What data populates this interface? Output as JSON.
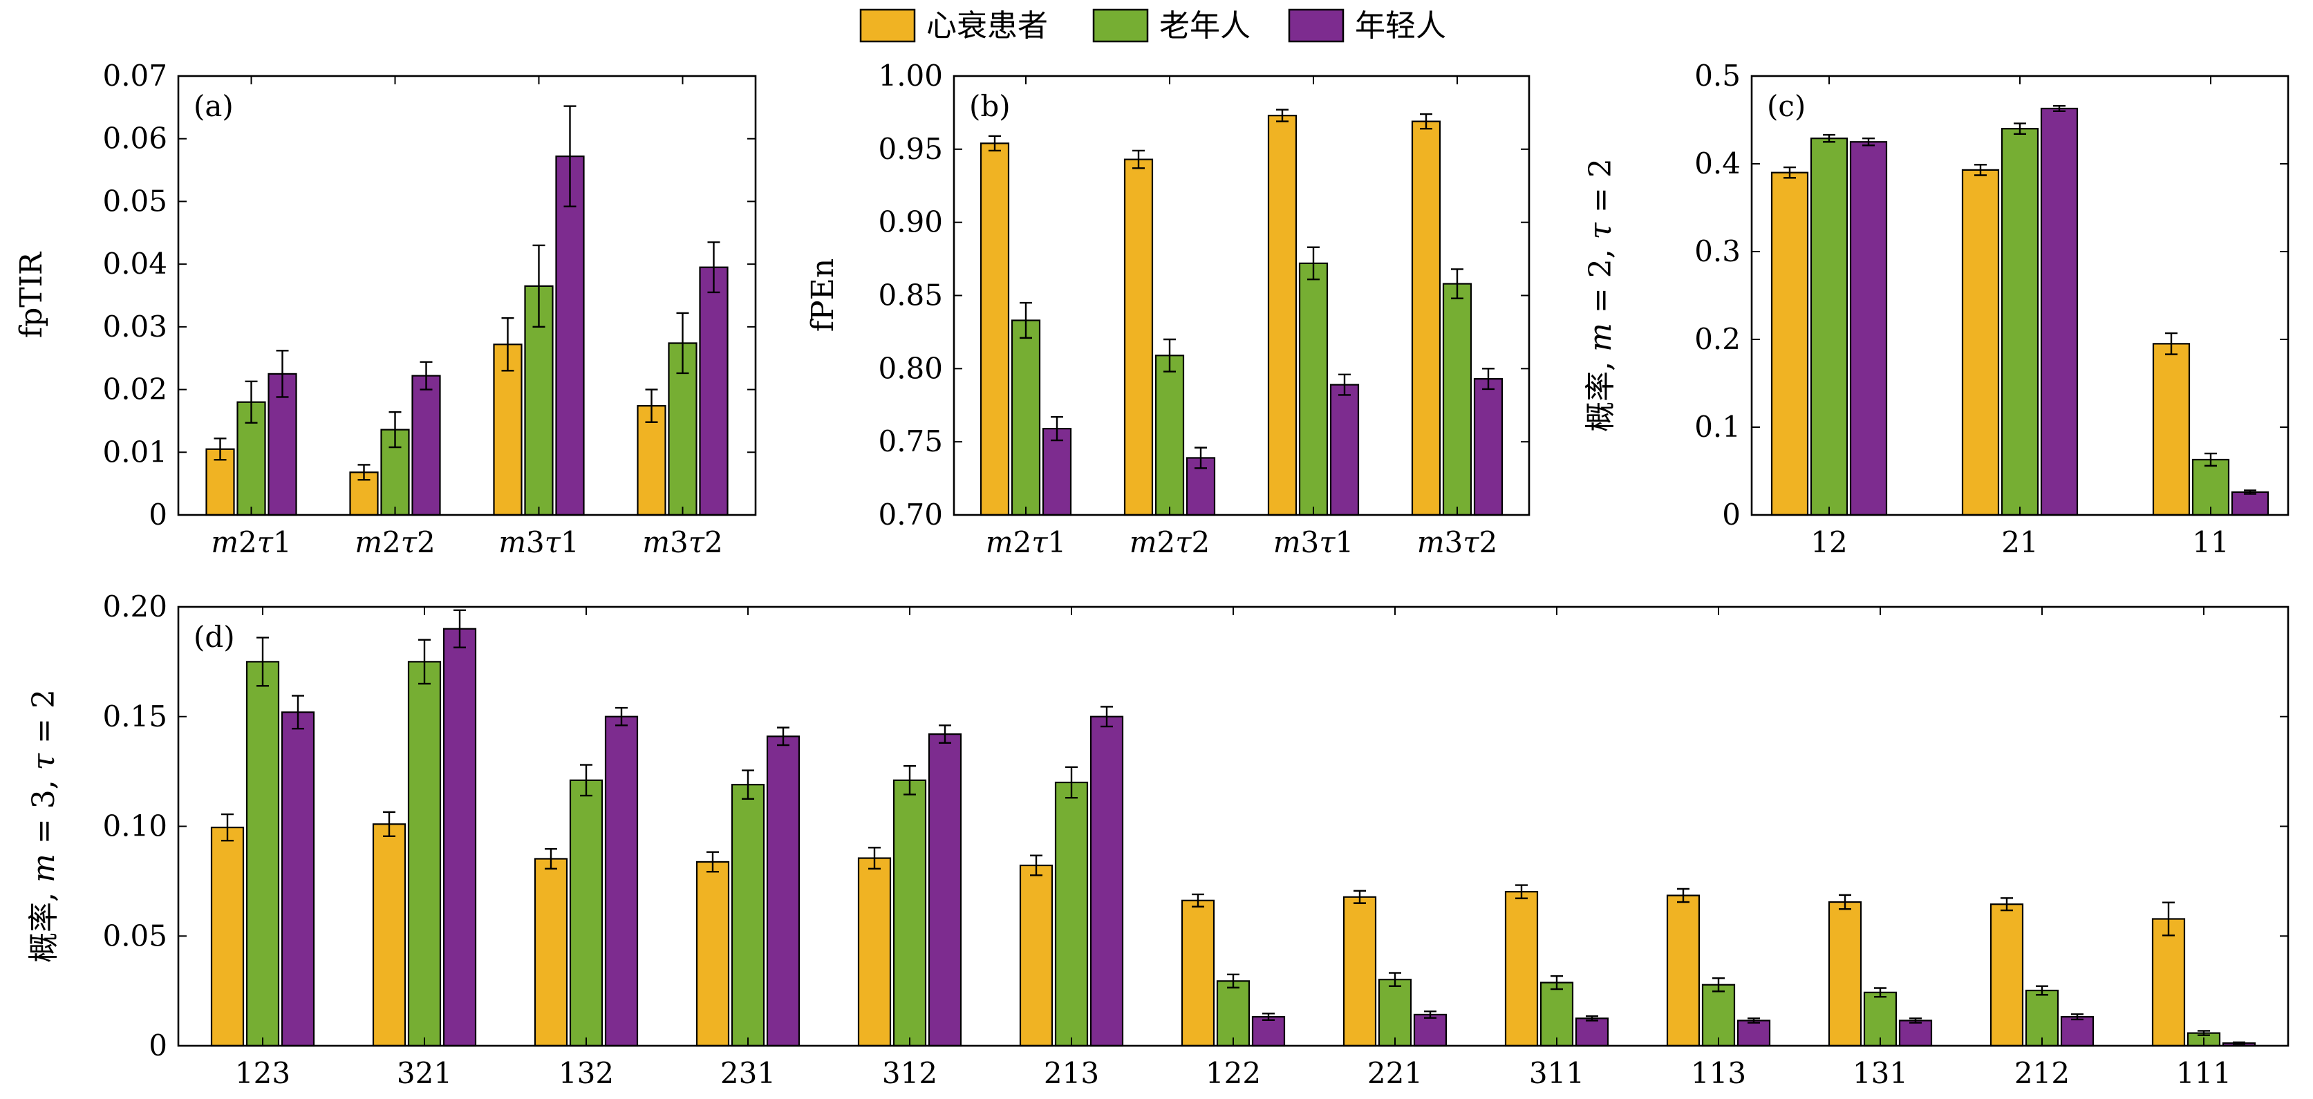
{
  "colors": {
    "心衰患者": "#F0B323",
    "老年人": "#76AE33",
    "年轻人": "#7D2C8F"
  },
  "legend": [
    "心衰患者",
    "老年人",
    "年轻人"
  ],
  "chart_data": [
    {
      "id": "a",
      "panel_label": "(a)",
      "type": "bar",
      "ylabel": "fpTIR",
      "xlabel": "",
      "categories": [
        "m2τ1",
        "m2τ2",
        "m3τ1",
        "m3τ2"
      ],
      "ylim": [
        0,
        0.07
      ],
      "yticks": [
        0,
        0.01,
        0.02,
        0.03,
        0.04,
        0.05,
        0.06,
        0.07
      ],
      "ytick_labels": [
        "0",
        "0.01",
        "0.02",
        "0.03",
        "0.04",
        "0.05",
        "0.06",
        "0.07"
      ],
      "series": [
        {
          "name": "心衰患者",
          "values": [
            0.0105,
            0.0068,
            0.0272,
            0.0174
          ],
          "errors": [
            0.0017,
            0.0012,
            0.0042,
            0.0026
          ]
        },
        {
          "name": "老年人",
          "values": [
            0.018,
            0.0136,
            0.0365,
            0.0274
          ],
          "errors": [
            0.0033,
            0.0028,
            0.0065,
            0.0048
          ]
        },
        {
          "name": "年轻人",
          "values": [
            0.0225,
            0.0222,
            0.0572,
            0.0395
          ],
          "errors": [
            0.0037,
            0.0022,
            0.008,
            0.004
          ]
        }
      ]
    },
    {
      "id": "b",
      "panel_label": "(b)",
      "type": "bar",
      "ylabel": "fPEn",
      "xlabel": "",
      "categories": [
        "m2τ1",
        "m2τ2",
        "m3τ1",
        "m3τ2"
      ],
      "ylim": [
        0.7,
        1.0
      ],
      "yticks": [
        0.7,
        0.75,
        0.8,
        0.85,
        0.9,
        0.95,
        1.0
      ],
      "ytick_labels": [
        "0.70",
        "0.75",
        "0.80",
        "0.85",
        "0.90",
        "0.95",
        "1.00"
      ],
      "series": [
        {
          "name": "心衰患者",
          "values": [
            0.954,
            0.943,
            0.973,
            0.969
          ],
          "errors": [
            0.005,
            0.006,
            0.004,
            0.005
          ]
        },
        {
          "name": "老年人",
          "values": [
            0.833,
            0.809,
            0.872,
            0.858
          ],
          "errors": [
            0.012,
            0.011,
            0.011,
            0.01
          ]
        },
        {
          "name": "年轻人",
          "values": [
            0.759,
            0.739,
            0.789,
            0.793
          ],
          "errors": [
            0.008,
            0.007,
            0.007,
            0.007
          ]
        }
      ]
    },
    {
      "id": "c",
      "panel_label": "(c)",
      "type": "bar",
      "ylabel": "概率, m = 2, τ = 2",
      "xlabel": "",
      "categories": [
        "12",
        "21",
        "11"
      ],
      "ylim": [
        0,
        0.5
      ],
      "yticks": [
        0,
        0.1,
        0.2,
        0.3,
        0.4,
        0.5
      ],
      "ytick_labels": [
        "0",
        "0.1",
        "0.2",
        "0.3",
        "0.4",
        "0.5"
      ],
      "series": [
        {
          "name": "心衰患者",
          "values": [
            0.39,
            0.393,
            0.195
          ],
          "errors": [
            0.006,
            0.006,
            0.012
          ]
        },
        {
          "name": "老年人",
          "values": [
            0.429,
            0.44,
            0.063
          ],
          "errors": [
            0.004,
            0.006,
            0.007
          ]
        },
        {
          "name": "年轻人",
          "values": [
            0.425,
            0.463,
            0.026
          ],
          "errors": [
            0.004,
            0.003,
            0.002
          ]
        }
      ]
    },
    {
      "id": "d",
      "panel_label": "(d)",
      "type": "bar",
      "ylabel": "概率, m = 3, τ = 2",
      "xlabel": "",
      "categories": [
        "123",
        "321",
        "132",
        "231",
        "312",
        "213",
        "122",
        "221",
        "311",
        "113",
        "131",
        "212",
        "111"
      ],
      "ylim": [
        0,
        0.2
      ],
      "yticks": [
        0,
        0.05,
        0.1,
        0.15,
        0.2
      ],
      "ytick_labels": [
        "0",
        "0.05",
        "0.10",
        "0.15",
        "0.20"
      ],
      "series": [
        {
          "name": "心衰患者",
          "values": [
            0.0995,
            0.101,
            0.0852,
            0.0838,
            0.0855,
            0.0822,
            0.0662,
            0.0678,
            0.0702,
            0.0685,
            0.0655,
            0.0645,
            0.0578
          ],
          "errors": [
            0.006,
            0.0055,
            0.0045,
            0.0045,
            0.0048,
            0.0045,
            0.0028,
            0.0028,
            0.003,
            0.003,
            0.0032,
            0.0028,
            0.0075
          ]
        },
        {
          "name": "老年人",
          "values": [
            0.175,
            0.175,
            0.121,
            0.119,
            0.121,
            0.12,
            0.0295,
            0.0302,
            0.0288,
            0.0278,
            0.0243,
            0.0252,
            0.0058
          ],
          "errors": [
            0.011,
            0.01,
            0.007,
            0.0065,
            0.0065,
            0.007,
            0.003,
            0.003,
            0.003,
            0.003,
            0.002,
            0.002,
            0.001
          ]
        },
        {
          "name": "年轻人",
          "values": [
            0.152,
            0.19,
            0.15,
            0.141,
            0.142,
            0.15,
            0.0132,
            0.0142,
            0.0125,
            0.0115,
            0.0115,
            0.0132,
            0.0012
          ],
          "errors": [
            0.0075,
            0.0085,
            0.004,
            0.004,
            0.004,
            0.0045,
            0.0015,
            0.0015,
            0.001,
            0.001,
            0.001,
            0.0012,
            0.0004
          ]
        }
      ]
    }
  ]
}
